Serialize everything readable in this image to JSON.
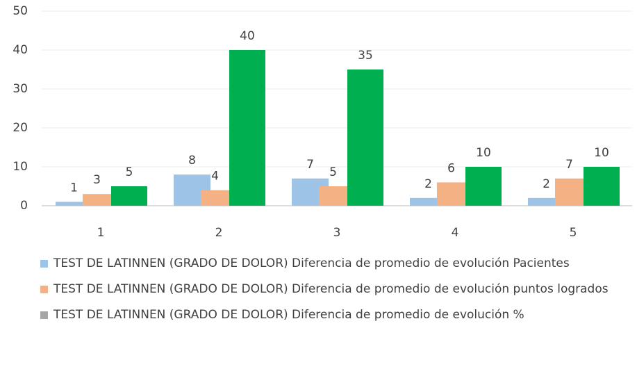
{
  "chart_data": {
    "type": "bar",
    "categories": [
      "1",
      "2",
      "3",
      "4",
      "5"
    ],
    "series": [
      {
        "name": "TEST DE LATINNEN (GRADO DE DOLOR) Diferencia de promedio de evolución Pacientes",
        "color": "#9dc3e6",
        "values": [
          1,
          8,
          7,
          2,
          2
        ]
      },
      {
        "name": "TEST DE LATINNEN (GRADO DE DOLOR) Diferencia de promedio de evolución puntos logrados",
        "color": "#f4b183",
        "values": [
          3,
          4,
          5,
          6,
          7
        ]
      },
      {
        "name": "TEST DE LATINNEN (GRADO DE DOLOR) Diferencia de promedio de evolución %",
        "color": "#00b050",
        "legend_color": "#a6a6a6",
        "values": [
          5,
          40,
          35,
          10,
          10
        ]
      }
    ],
    "ylim": [
      0,
      50
    ],
    "yticks": [
      0,
      10,
      20,
      30,
      40,
      50
    ],
    "grid": true,
    "legend": "bottom"
  }
}
